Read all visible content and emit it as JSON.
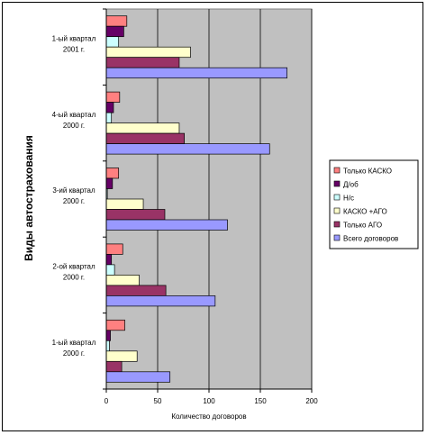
{
  "chart_data": {
    "type": "bar",
    "orientation": "horizontal",
    "categories": [
      "1-ый квартал 2001 г.",
      "4-ый квартал 2000 г.",
      "3-ий квартал 2000 г.",
      "2-ой квартал 2000 г.",
      "1-ый квартал 2000 г."
    ],
    "category_lines": [
      [
        "1-ый  квартал",
        "2001 г."
      ],
      [
        "4-ый  квартал",
        "2000 г."
      ],
      [
        "3-ий  квартал",
        "2000 г."
      ],
      [
        "2-ой  квартал",
        "2000 г."
      ],
      [
        "1-ый  квартал",
        "2000 г."
      ]
    ],
    "series": [
      {
        "name": "Только КАСКО",
        "color": "#FF8080",
        "values": [
          20,
          13,
          12,
          16,
          18
        ]
      },
      {
        "name": "Д/об",
        "color": "#660066",
        "values": [
          17,
          7,
          6,
          5,
          4
        ]
      },
      {
        "name": "Н/с",
        "color": "#CCFFFF",
        "values": [
          12,
          5,
          1,
          8,
          3
        ]
      },
      {
        "name": "КАСКО +АГО",
        "color": "#FFFFCC",
        "values": [
          82,
          71,
          36,
          32,
          30
        ]
      },
      {
        "name": "Только АГО",
        "color": "#993366",
        "values": [
          71,
          76,
          57,
          58,
          15
        ]
      },
      {
        "name": "Всего договоров",
        "color": "#9999FF",
        "values": [
          176,
          159,
          118,
          106,
          62
        ]
      }
    ],
    "xlim": [
      0,
      200
    ],
    "xticks": [
      0,
      50,
      100,
      150,
      200
    ],
    "xlabel": "Количество договоров",
    "ylabel": "Виды автострахования",
    "plot_background": "#C0C0C0",
    "grid": true,
    "legend_position": "right"
  }
}
